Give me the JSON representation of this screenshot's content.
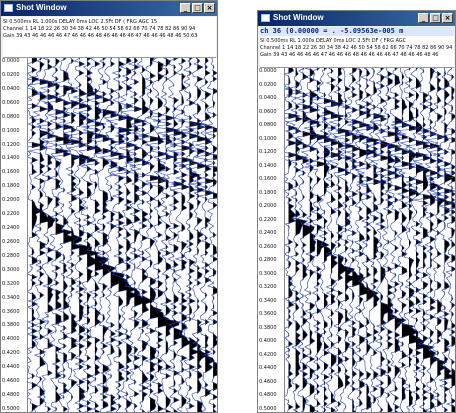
{
  "windows": [
    {
      "title": "Shot Window",
      "header_lines": [
        "SI 0.500ms   RL 1.000s   DELAY 0ms   LOC 2.5Ft  DF ( FRG AGC 15",
        "Channel 1  14 18 22 26 30 34 38 42 46 50 54 58 62 66 70 74 78 82 86 90 94",
        "Gain    39 43 46 46 46 46 47 46 46 46 48 46 46 46 46 47 46 46 46 48 46 50 63"
      ],
      "time_ticks": [
        "0.0000",
        "0.0200",
        "0.0400",
        "0.0600",
        "0.0800",
        "0.1000",
        "0.1200",
        "0.1400",
        "0.1600",
        "0.1800",
        "0.2000",
        "0.2200",
        "0.2400",
        "0.2600",
        "0.2800",
        "0.3000",
        "0.3200",
        "0.3400",
        "0.3600",
        "0.3800",
        "0.4000",
        "0.4200",
        "0.4400",
        "0.4600",
        "0.4800",
        "0.5000"
      ]
    },
    {
      "title": "Shot Window",
      "header_lines": [
        "ch   36  (0.00000 = .  -5.09563e-005 m",
        "SI 0.500ms  RL 1.000s  DELAY 0ms  LOC 2.5Ft  DF ( FRG AGC",
        "Channel 1  14 18 22 26 30 34 38 42 46 50 54 58 62 66 70 74 78 82 86 90 94",
        "Gain    39 43 46 46 46 46 47 46 46 46 48 46 46 46 46 47 46 46 46 48 46"
      ],
      "time_ticks": [
        "0.0000",
        "0.0200",
        "0.0400",
        "0.0600",
        "0.0800",
        "0.1000",
        "0.1200",
        "0.1400",
        "0.1600",
        "0.1800",
        "0.2000",
        "0.2200",
        "0.2400",
        "0.2600",
        "0.2800",
        "0.3000",
        "0.3200",
        "0.3400",
        "0.3600",
        "0.3800",
        "0.4000",
        "0.4200",
        "0.4400",
        "0.4600",
        "0.4800",
        "0.5000"
      ]
    }
  ],
  "colors": {
    "trace_fill": "#000000",
    "trace_line": "#1f3fbf"
  },
  "icons": [
    "window-app-icon",
    "minimize-icon",
    "maximize-icon",
    "close-icon"
  ]
}
